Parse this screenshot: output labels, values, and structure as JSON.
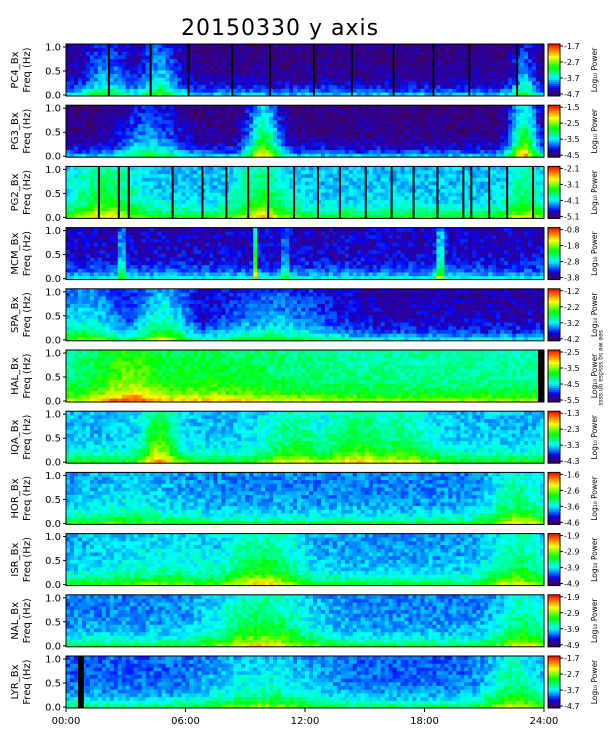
{
  "title": "20150330 y axis",
  "side_note": "see we sq sssdsa on ssss",
  "chart_data": {
    "type": "heatmap",
    "title": "20150330 y axis",
    "xlabel": "",
    "x_ticks": [
      "00:00",
      "06:00",
      "12:00",
      "18:00",
      "24:00"
    ],
    "x_range_hours": [
      0,
      24
    ],
    "y_range_hz": [
      0,
      1.0
    ],
    "y_ticks": [
      "0.0",
      "0.5",
      "1.0"
    ],
    "colorbar_label": "Log₁₀ Power",
    "panels": [
      {
        "station": "PC4",
        "ylabel_top": "PC4_Bx",
        "ylabel_bottom": "Freq (Hz)",
        "colorbar_ticks": [
          "-1.7",
          "-2.7",
          "-3.7",
          "-4.7"
        ],
        "base_level": 0.06,
        "gaps": [
          2.1,
          4.2,
          6.1,
          8.3,
          10.2,
          12.4,
          14.3,
          16.4,
          18.4,
          20.2,
          22.6
        ],
        "features": [
          {
            "center": 2.0,
            "width": 1.2,
            "level": 0.3
          },
          {
            "center": 4.7,
            "width": 1.0,
            "level": 0.35
          },
          {
            "center": 23.0,
            "width": 0.6,
            "level": 0.3
          }
        ]
      },
      {
        "station": "PG3",
        "ylabel_top": "PG3_Bx",
        "ylabel_bottom": "Freq (Hz)",
        "colorbar_ticks": [
          "-1.5",
          "-2.5",
          "-3.5",
          "-4.5"
        ],
        "base_level": 0.05,
        "gaps": [],
        "features": [
          {
            "center": 9.9,
            "width": 0.8,
            "level": 0.55
          },
          {
            "center": 23.0,
            "width": 0.7,
            "level": 0.6
          },
          {
            "center": 4.2,
            "width": 1.5,
            "level": 0.3
          }
        ]
      },
      {
        "station": "PG2",
        "ylabel_top": "PG2_Bx",
        "ylabel_bottom": "Freq (Hz)",
        "colorbar_ticks": [
          "-2.1",
          "-3.1",
          "-4.1",
          "-5.1"
        ],
        "base_level": 0.3,
        "gaps": [
          1.6,
          2.6,
          3.1,
          5.3,
          6.8,
          8.0,
          9.1,
          10.1,
          11.4,
          12.6,
          13.7,
          15.0,
          16.3,
          17.4,
          18.6,
          19.9,
          20.3,
          21.2,
          22.1,
          23.4
        ],
        "features": [
          {
            "center": 2.0,
            "width": 1.5,
            "level": 0.55
          },
          {
            "center": 9.8,
            "width": 1.2,
            "level": 0.55
          },
          {
            "center": 23.0,
            "width": 0.8,
            "level": 0.5
          }
        ]
      },
      {
        "station": "MCM",
        "ylabel_top": "MCM_Bx",
        "ylabel_bottom": "Freq (Hz)",
        "colorbar_ticks": [
          "-0.8",
          "-1.8",
          "-2.8",
          "-3.8"
        ],
        "base_level": 0.12,
        "gaps": [],
        "features": [
          {
            "center": 2.8,
            "width": 0.1,
            "level": 0.7
          },
          {
            "center": 9.5,
            "width": 0.1,
            "level": 0.6
          },
          {
            "center": 11.0,
            "width": 0.1,
            "level": 0.5
          },
          {
            "center": 18.8,
            "width": 0.2,
            "level": 0.5
          }
        ]
      },
      {
        "station": "SPA",
        "ylabel_top": "SPA_Bx",
        "ylabel_bottom": "Freq (Hz)",
        "colorbar_ticks": [
          "-1.2",
          "-2.2",
          "-3.2",
          "-4.2"
        ],
        "base_level": 0.1,
        "gaps": [],
        "features": [
          {
            "center": 1.0,
            "width": 2.0,
            "level": 0.4
          },
          {
            "center": 4.8,
            "width": 1.5,
            "level": 0.45
          },
          {
            "center": 10.5,
            "width": 3.0,
            "level": 0.3
          }
        ]
      },
      {
        "station": "HAL",
        "ylabel_top": "HAL_Bx",
        "ylabel_bottom": "Freq (Hz)",
        "colorbar_ticks": [
          "-2.5",
          "-3.5",
          "-4.5",
          "-5.5"
        ],
        "base_level": 0.42,
        "gaps": [
          23.7,
          23.8,
          23.9
        ],
        "features": [
          {
            "center": 3.3,
            "width": 2.0,
            "level": 0.68
          },
          {
            "center": 6.5,
            "width": 5.0,
            "level": 0.55
          }
        ]
      },
      {
        "station": "IQA",
        "ylabel_top": "IQA_Bx",
        "ylabel_bottom": "Freq (Hz)",
        "colorbar_ticks": [
          "-1.3",
          "-2.3",
          "-3.3",
          "-4.3"
        ],
        "base_level": 0.3,
        "gaps": [],
        "features": [
          {
            "center": 4.7,
            "width": 0.8,
            "level": 0.65
          },
          {
            "center": 11.5,
            "width": 1.6,
            "level": 0.5
          },
          {
            "center": 14.7,
            "width": 2.0,
            "level": 0.55
          },
          {
            "center": 16.8,
            "width": 1.6,
            "level": 0.5
          }
        ]
      },
      {
        "station": "HOR",
        "ylabel_top": "HOR_Bx",
        "ylabel_bottom": "Freq (Hz)",
        "colorbar_ticks": [
          "-1.6",
          "-2.6",
          "-3.6",
          "-4.6"
        ],
        "base_level": 0.25,
        "gaps": [],
        "features": [
          {
            "center": 22.7,
            "width": 1.5,
            "level": 0.5
          },
          {
            "center": 3.0,
            "width": 3.0,
            "level": 0.35
          }
        ]
      },
      {
        "station": "ISR",
        "ylabel_top": "ISR_Bx",
        "ylabel_bottom": "Freq (Hz)",
        "colorbar_ticks": [
          "-1.9",
          "-2.9",
          "-3.9",
          "-4.9"
        ],
        "base_level": 0.27,
        "gaps": [],
        "features": [
          {
            "center": 9.8,
            "width": 2.0,
            "level": 0.55
          },
          {
            "center": 22.7,
            "width": 1.5,
            "level": 0.5
          },
          {
            "center": 5.0,
            "width": 4.0,
            "level": 0.38
          }
        ]
      },
      {
        "station": "NAL",
        "ylabel_top": "NAL_Bx",
        "ylabel_bottom": "Freq (Hz)",
        "colorbar_ticks": [
          "-1.9",
          "-2.9",
          "-3.9",
          "-4.9"
        ],
        "base_level": 0.25,
        "gaps": [],
        "features": [
          {
            "center": 9.8,
            "width": 2.5,
            "level": 0.55
          },
          {
            "center": 23.0,
            "width": 1.3,
            "level": 0.5
          }
        ]
      },
      {
        "station": "LYR",
        "ylabel_top": "LYR_Bx",
        "ylabel_bottom": "Freq (Hz)",
        "colorbar_ticks": [
          "-1.7",
          "-2.7",
          "-3.7",
          "-4.7"
        ],
        "base_level": 0.22,
        "gaps": [
          0.6,
          0.7,
          0.8
        ],
        "features": [
          {
            "center": 10.0,
            "width": 3.0,
            "level": 0.4
          },
          {
            "center": 22.5,
            "width": 1.5,
            "level": 0.5
          }
        ]
      }
    ]
  }
}
